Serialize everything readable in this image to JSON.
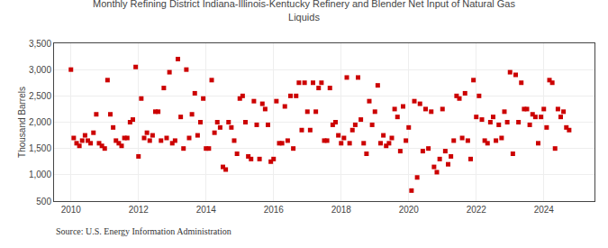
{
  "chart_data": {
    "type": "scatter",
    "title": "Monthly Refining District Indiana-Illinois-Kentucky Refinery and Blender Net Input of Natural Gas\nLiquids",
    "ylabel": "Thousand Barrels",
    "annotations": [
      "Source: U.S. Energy Information Administration"
    ],
    "color": "#cc0000",
    "marker": "square",
    "grid": true,
    "xlim": [
      2009.5,
      2025.5
    ],
    "xticks": [
      2010,
      2012,
      2014,
      2016,
      2018,
      2020,
      2022,
      2024
    ],
    "ylim": [
      500,
      3500
    ],
    "yticks": [
      500,
      {
        "value": 1000,
        "label": "1,000"
      },
      {
        "value": 1500,
        "label": "1,500"
      },
      {
        "value": 2000,
        "label": "2,000"
      },
      {
        "value": 2500,
        "label": "2,500"
      },
      {
        "value": 3000,
        "label": "3,000"
      },
      {
        "value": 3500,
        "label": "3,500"
      }
    ],
    "x": [
      2010.0,
      2010.083,
      2010.167,
      2010.25,
      2010.333,
      2010.417,
      2010.5,
      2010.583,
      2010.667,
      2010.75,
      2010.833,
      2010.917,
      2011.0,
      2011.083,
      2011.167,
      2011.25,
      2011.333,
      2011.417,
      2011.5,
      2011.583,
      2011.667,
      2011.75,
      2011.833,
      2011.917,
      2012.0,
      2012.083,
      2012.167,
      2012.25,
      2012.333,
      2012.417,
      2012.5,
      2012.583,
      2012.667,
      2012.75,
      2012.833,
      2012.917,
      2013.0,
      2013.083,
      2013.167,
      2013.25,
      2013.333,
      2013.417,
      2013.5,
      2013.583,
      2013.667,
      2013.75,
      2013.833,
      2013.917,
      2014.0,
      2014.083,
      2014.167,
      2014.25,
      2014.333,
      2014.417,
      2014.5,
      2014.583,
      2014.667,
      2014.75,
      2014.833,
      2014.917,
      2015.0,
      2015.083,
      2015.167,
      2015.25,
      2015.333,
      2015.417,
      2015.5,
      2015.583,
      2015.667,
      2015.75,
      2015.833,
      2015.917,
      2016.0,
      2016.083,
      2016.167,
      2016.25,
      2016.333,
      2016.417,
      2016.5,
      2016.583,
      2016.667,
      2016.75,
      2016.833,
      2016.917,
      2017.0,
      2017.083,
      2017.167,
      2017.25,
      2017.333,
      2017.417,
      2017.5,
      2017.583,
      2017.667,
      2017.75,
      2017.833,
      2017.917,
      2018.0,
      2018.083,
      2018.167,
      2018.25,
      2018.333,
      2018.417,
      2018.5,
      2018.583,
      2018.667,
      2018.75,
      2018.833,
      2018.917,
      2019.0,
      2019.083,
      2019.167,
      2019.25,
      2019.333,
      2019.417,
      2019.5,
      2019.583,
      2019.667,
      2019.75,
      2019.833,
      2019.917,
      2020.0,
      2020.083,
      2020.167,
      2020.25,
      2020.333,
      2020.417,
      2020.5,
      2020.583,
      2020.667,
      2020.75,
      2020.833,
      2020.917,
      2021.0,
      2021.083,
      2021.167,
      2021.25,
      2021.333,
      2021.417,
      2021.5,
      2021.583,
      2021.667,
      2021.75,
      2021.833,
      2021.917,
      2022.0,
      2022.083,
      2022.167,
      2022.25,
      2022.333,
      2022.417,
      2022.5,
      2022.583,
      2022.667,
      2022.75,
      2022.833,
      2022.917,
      2023.0,
      2023.083,
      2023.167,
      2023.25,
      2023.333,
      2023.417,
      2023.5,
      2023.583,
      2023.667,
      2023.75,
      2023.833,
      2023.917,
      2024.0,
      2024.083,
      2024.167,
      2024.25,
      2024.333,
      2024.417,
      2024.5,
      2024.583,
      2024.667,
      2024.75
    ],
    "values": [
      3000,
      1700,
      1600,
      1550,
      1650,
      1750,
      1650,
      1600,
      1800,
      2150,
      1600,
      1550,
      1500,
      2800,
      2150,
      1900,
      1650,
      1600,
      1550,
      1700,
      1700,
      2000,
      2050,
      3050,
      1350,
      2450,
      1700,
      1800,
      1650,
      1750,
      2200,
      2200,
      1650,
      2650,
      1700,
      2950,
      1600,
      1650,
      3200,
      2100,
      1500,
      3000,
      1700,
      2150,
      2550,
      1750,
      2000,
      2450,
      1500,
      1500,
      2800,
      1800,
      2000,
      1900,
      1150,
      1100,
      2000,
      1900,
      1650,
      1400,
      2450,
      2500,
      2000,
      1350,
      1300,
      2400,
      1950,
      1300,
      2350,
      2250,
      1950,
      1250,
      1300,
      2400,
      1600,
      1600,
      2300,
      1650,
      2500,
      1500,
      2500,
      2750,
      1850,
      2750,
      2200,
      1850,
      2750,
      2200,
      2650,
      2750,
      1650,
      1650,
      2650,
      1950,
      2000,
      1750,
      1600,
      1700,
      2850,
      1600,
      1850,
      1950,
      2850,
      2050,
      1600,
      1400,
      2400,
      1950,
      2200,
      2700,
      1600,
      1750,
      1550,
      1600,
      1700,
      2250,
      2100,
      1450,
      2300,
      1650,
      1900,
      700,
      2400,
      950,
      2350,
      1450,
      2250,
      1500,
      2200,
      1150,
      1050,
      1300,
      2250,
      1450,
      1200,
      1350,
      1650,
      2500,
      2450,
      1700,
      2550,
      1650,
      1300,
      2800,
      2100,
      2500,
      2050,
      1650,
      1600,
      2000,
      2100,
      1650,
      1950,
      1700,
      2200,
      2000,
      2950,
      1400,
      2900,
      2000,
      2750,
      2250,
      2250,
      1950,
      2150,
      2100,
      1600,
      2100,
      2250,
      1900,
      2800,
      2750,
      1500,
      2250,
      2100,
      2200,
      1900,
      1850
    ]
  }
}
